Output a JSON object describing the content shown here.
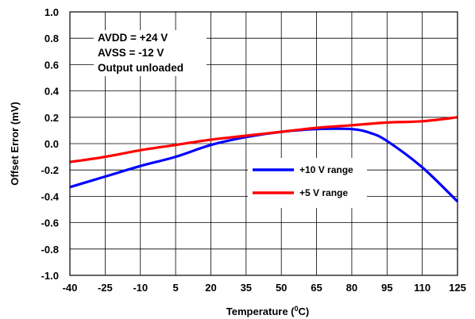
{
  "chart_data": {
    "type": "line",
    "xlabel": "Temperature (",
    "xlabel_sup": "0",
    "xlabel_tail": "C)",
    "ylabel": "Offset Error (mV)",
    "xlim": [
      -40,
      125
    ],
    "ylim": [
      -1.0,
      1.0
    ],
    "x_ticks": [
      "-40",
      "-25",
      "-10",
      "5",
      "20",
      "35",
      "50",
      "65",
      "80",
      "95",
      "110",
      "125"
    ],
    "y_ticks": [
      "1.0",
      "0.8",
      "0.6",
      "0.4",
      "0.2",
      "0.0",
      "-0.2",
      "-0.4",
      "-0.6",
      "-0.8",
      "-1.0"
    ],
    "grid": true,
    "annotations": [
      "AVDD = +24 V",
      "AVSS = -12 V",
      "Output unloaded"
    ],
    "legend_position": "center-right",
    "series": [
      {
        "name": "+10 V range",
        "color": "#0000ff",
        "x": [
          -40,
          -25,
          -10,
          5,
          20,
          35,
          50,
          65,
          80,
          88,
          95,
          110,
          125
        ],
        "y": [
          -0.33,
          -0.25,
          -0.17,
          -0.1,
          -0.01,
          0.05,
          0.09,
          0.11,
          0.11,
          0.08,
          0.02,
          -0.18,
          -0.44
        ]
      },
      {
        "name": "+5 V range",
        "color": "#ff0000",
        "x": [
          -40,
          -25,
          -10,
          5,
          20,
          35,
          50,
          65,
          80,
          95,
          110,
          125
        ],
        "y": [
          -0.14,
          -0.1,
          -0.05,
          -0.01,
          0.03,
          0.06,
          0.09,
          0.12,
          0.14,
          0.16,
          0.17,
          0.2
        ]
      }
    ]
  }
}
